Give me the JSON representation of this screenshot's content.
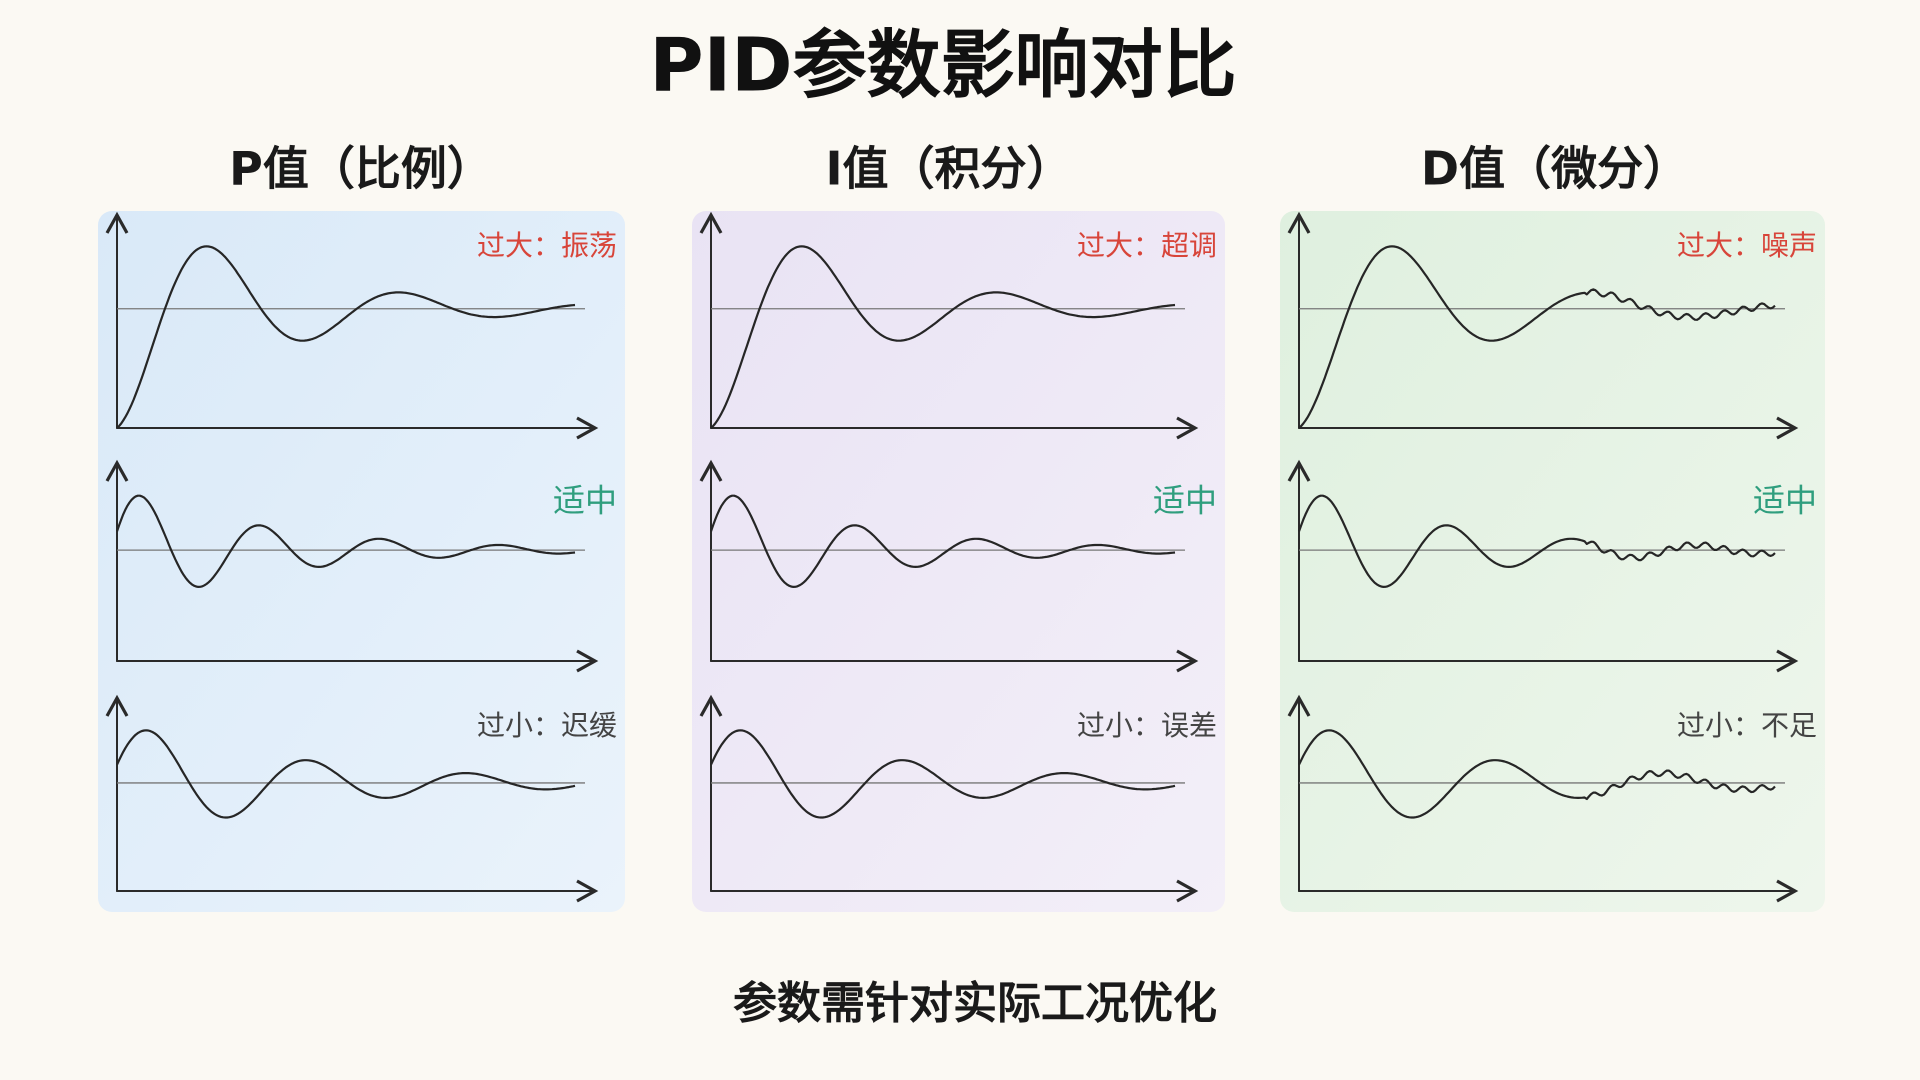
{
  "title": "PID参数影响对比",
  "columns": [
    {
      "heading": "P值（比例）",
      "panels": [
        {
          "label": "过大：振荡"
        },
        {
          "label": "适中"
        },
        {
          "label": "过小：迟缓"
        }
      ]
    },
    {
      "heading": "I值（积分）",
      "panels": [
        {
          "label": "过大：超调"
        },
        {
          "label": "适中"
        },
        {
          "label": "过小：误差"
        }
      ]
    },
    {
      "heading": "D值（微分）",
      "panels": [
        {
          "label": "过大：噪声"
        },
        {
          "label": "适中"
        },
        {
          "label": "过小：不足"
        }
      ]
    }
  ],
  "footer": "参数需针对实际工况优化"
}
